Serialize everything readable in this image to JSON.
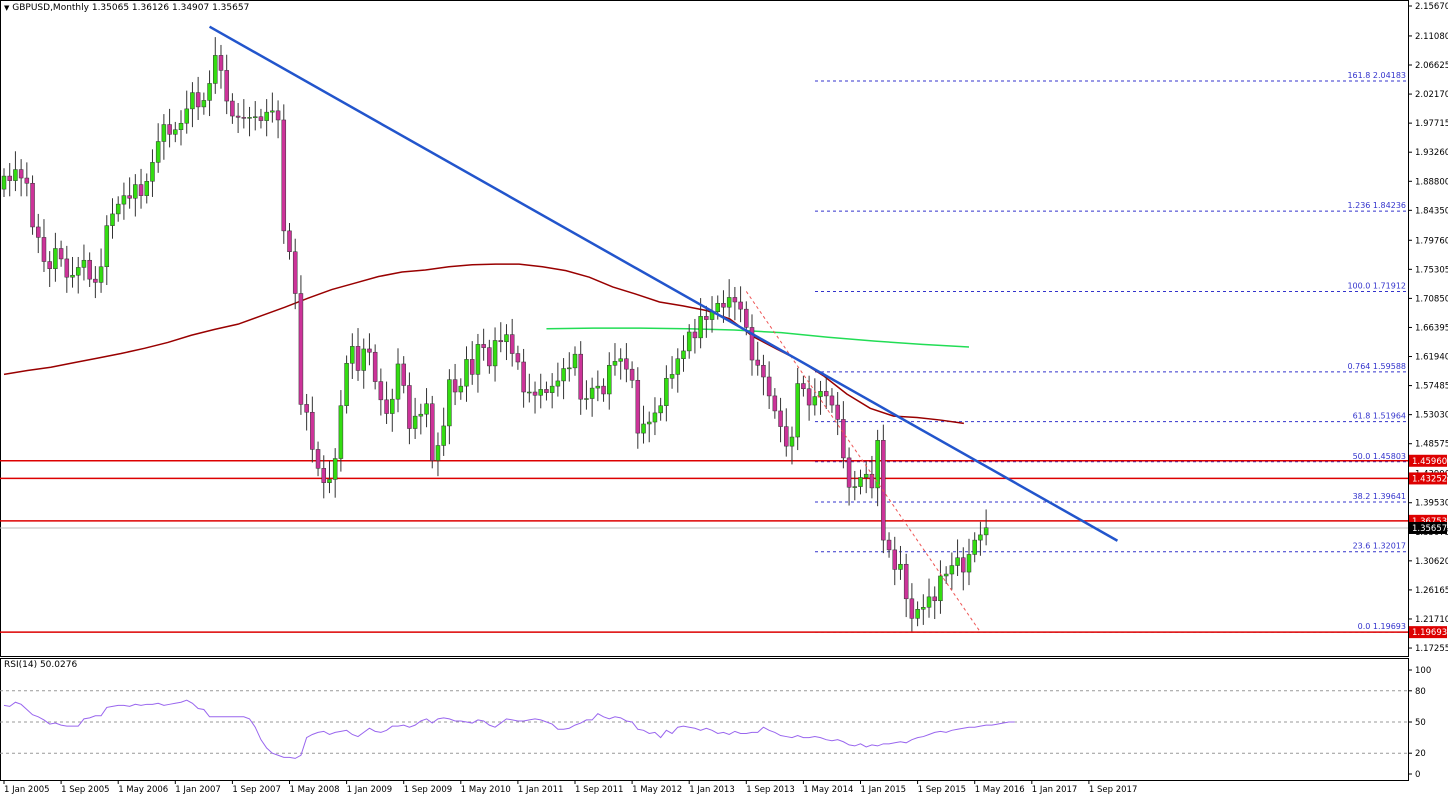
{
  "header": {
    "symbol": "GBPUSD,Monthly",
    "ohlc": "1.35065 1.36126 1.34907 1.35657"
  },
  "rsi_header": "RSI(14) 50.0276",
  "colors": {
    "bull": "#33dd11",
    "bear": "#cc3399",
    "ma_long": "#990000",
    "ma_green": "#22dd55",
    "trendline": "#2255cc",
    "hline": "#dd0000",
    "fib": "#3333cc",
    "rsi": "#9966ee",
    "price_tag": "#dd0000"
  },
  "chart_data": {
    "type": "candlestick",
    "title": "GBPUSD,Monthly",
    "ylim": [
      1.1726,
      2.1567
    ],
    "y_ticks": [
      "2.15670",
      "2.11080",
      "2.06625",
      "2.02170",
      "1.97715",
      "1.93260",
      "1.88800",
      "1.84350",
      "1.79760",
      "1.75305",
      "1.70850",
      "1.66395",
      "1.61940",
      "1.57485",
      "1.53030",
      "1.48575",
      "1.43990",
      "1.39530",
      "1.35075",
      "1.30620",
      "1.26165",
      "1.21710",
      "1.17255"
    ],
    "x_labels": [
      "1 Jan 2005",
      "1 Sep 2005",
      "1 May 2006",
      "1 Jan 2007",
      "1 Sep 2007",
      "1 May 2008",
      "1 Jan 2009",
      "1 Sep 2009",
      "1 May 2010",
      "1 Jan 2011",
      "1 Sep 2011",
      "1 May 2012",
      "1 Jan 2013",
      "1 Sep 2013",
      "1 May 2014",
      "1 Jan 2015",
      "1 Sep 2015",
      "1 May 2016",
      "1 Jan 2017",
      "1 Sep 2017"
    ],
    "candles_close": [
      1.896,
      1.889,
      1.906,
      1.893,
      1.885,
      1.818,
      1.802,
      1.765,
      1.754,
      1.785,
      1.769,
      1.741,
      1.744,
      1.756,
      1.767,
      1.738,
      1.733,
      1.757,
      1.82,
      1.838,
      1.853,
      1.866,
      1.862,
      1.883,
      1.866,
      1.888,
      1.917,
      1.949,
      1.975,
      1.96,
      1.967,
      1.977,
      1.999,
      2.024,
      2.002,
      2.012,
      2.038,
      2.081,
      2.058,
      2.011,
      1.988,
      1.986,
      1.985,
      1.986,
      1.987,
      1.981,
      1.994,
      1.996,
      1.982,
      1.812,
      1.78,
      1.716,
      1.546,
      1.534,
      1.477,
      1.448,
      1.426,
      1.431,
      1.463,
      1.544,
      1.609,
      1.635,
      1.598,
      1.631,
      1.626,
      1.581,
      1.553,
      1.532,
      1.554,
      1.608,
      1.575,
      1.509,
      1.528,
      1.531,
      1.547,
      1.46,
      1.483,
      1.513,
      1.584,
      1.565,
      1.574,
      1.615,
      1.592,
      1.638,
      1.633,
      1.605,
      1.644,
      1.642,
      1.653,
      1.624,
      1.611,
      1.565,
      1.565,
      1.56,
      1.569,
      1.564,
      1.574,
      1.582,
      1.601,
      1.602,
      1.623,
      1.554,
      1.555,
      1.571,
      1.574,
      1.562,
      1.606,
      1.612,
      1.616,
      1.6,
      1.583,
      1.502,
      1.516,
      1.519,
      1.533,
      1.544,
      1.586,
      1.592,
      1.616,
      1.628,
      1.657,
      1.648,
      1.681,
      1.676,
      1.688,
      1.701,
      1.695,
      1.71,
      1.703,
      1.692,
      1.664,
      1.614,
      1.606,
      1.588,
      1.559,
      1.536,
      1.512,
      1.482,
      1.496,
      1.578,
      1.57,
      1.545,
      1.558,
      1.566,
      1.559,
      1.545,
      1.523,
      1.464,
      1.419,
      1.42,
      1.434,
      1.439,
      1.418,
      1.491,
      1.338,
      1.323,
      1.293,
      1.301,
      1.248,
      1.218,
      1.232,
      1.235,
      1.251,
      1.245,
      1.283,
      1.286,
      1.299,
      1.311,
      1.289,
      1.316,
      1.338,
      1.346,
      1.357
    ],
    "hlines": [
      1.4596,
      1.43252,
      1.36753,
      1.19693
    ],
    "hline_labels": [
      "1.45960",
      "1.43252",
      "1.36753",
      "1.19693"
    ],
    "current_price": 1.35657,
    "current_price_label": "1.35657",
    "fib_levels": [
      {
        "label": "161.8 2.04183",
        "value": 2.04183
      },
      {
        "label": "1.236 1.84236",
        "value": 1.84236
      },
      {
        "label": "100.0 1.71912",
        "value": 1.71912
      },
      {
        "label": "0.764 1.59588",
        "value": 1.59588
      },
      {
        "label": "61.8 1.51964",
        "value": 1.51964
      },
      {
        "label": "50.0 1.45803",
        "value": 1.45803
      },
      {
        "label": "38.2 1.39641",
        "value": 1.39641
      },
      {
        "label": "23.6 1.32017",
        "value": 1.32017
      },
      {
        "label": "0.0 1.19693",
        "value": 1.19693
      }
    ],
    "trendline": {
      "from": {
        "bar": 36,
        "price": 2.125
      },
      "to": {
        "bar": 195,
        "price": 1.337
      }
    },
    "ma_long_values": [
      1.592,
      1.598,
      1.603,
      1.61,
      1.617,
      1.624,
      1.632,
      1.641,
      1.652,
      1.661,
      1.669,
      1.682,
      1.695,
      1.709,
      1.722,
      1.732,
      1.742,
      1.749,
      1.752,
      1.757,
      1.76,
      1.761,
      1.761,
      1.757,
      1.751,
      1.741,
      1.726,
      1.715,
      1.703,
      1.697,
      1.69,
      1.677,
      1.65,
      1.631,
      1.613,
      1.59,
      1.562,
      1.54,
      1.528,
      1.526,
      1.522,
      1.517
    ],
    "ma_green": {
      "from_bar": 95,
      "to_bar": 169,
      "values": [
        1.662,
        1.663,
        1.663,
        1.662,
        1.66,
        1.656,
        1.649,
        1.643,
        1.638,
        1.634
      ]
    },
    "rsi": {
      "label": "RSI(14) 50.0276",
      "ylim": [
        0,
        100
      ],
      "ticks": [
        "100",
        "80",
        "50",
        "20",
        "0"
      ],
      "levels": [
        80,
        50,
        20
      ],
      "values": [
        66,
        65,
        69,
        67,
        62,
        57,
        55,
        52,
        48,
        49,
        47,
        46,
        46,
        46,
        53,
        54,
        56,
        56,
        64,
        65,
        66,
        66,
        65,
        67,
        66,
        67,
        67,
        68,
        66,
        67,
        68,
        69,
        71,
        68,
        63,
        62,
        55,
        55,
        55,
        55,
        55,
        55,
        55,
        53,
        45,
        33,
        25,
        20,
        18,
        16,
        16,
        15,
        18,
        35,
        38,
        40,
        41,
        38,
        40,
        41,
        42,
        38,
        36,
        40,
        44,
        41,
        40,
        42,
        46,
        46,
        47,
        45,
        47,
        51,
        53,
        49,
        53,
        54,
        53,
        51,
        51,
        50,
        49,
        52,
        51,
        47,
        45,
        49,
        53,
        52,
        51,
        51,
        52,
        53,
        52,
        50,
        48,
        43,
        43,
        44,
        47,
        49,
        52,
        52,
        58,
        55,
        53,
        55,
        54,
        51,
        50,
        43,
        42,
        39,
        40,
        35,
        42,
        39,
        45,
        46,
        45,
        44,
        42,
        44,
        42,
        39,
        40,
        38,
        41,
        39,
        39,
        40,
        40,
        45,
        42,
        40,
        37,
        36,
        35,
        37,
        35,
        35,
        36,
        35,
        33,
        32,
        33,
        31,
        28,
        27,
        29,
        26,
        28,
        27,
        29,
        29,
        30,
        31,
        30,
        33,
        35,
        36,
        38,
        40,
        41,
        40,
        42,
        43,
        44,
        45,
        45,
        46,
        47,
        47,
        48,
        49,
        50,
        50
      ]
    }
  }
}
